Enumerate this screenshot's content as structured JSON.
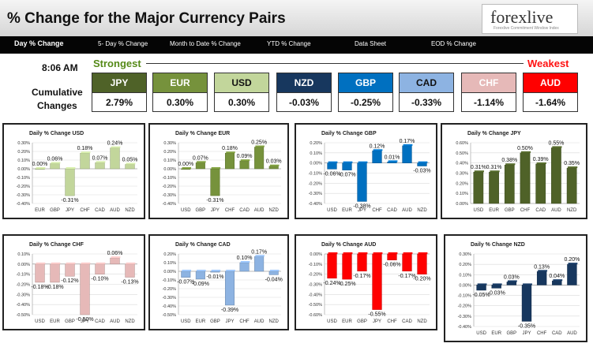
{
  "header": {
    "title": "% Change for the Major Currency Pairs",
    "logo": "forexlive",
    "logo_tagline": "Forexlive Commitment Window Index"
  },
  "tabs": [
    "Day % Change",
    "5- Day % Change",
    "Month to Date % Change",
    "YTD % Change",
    "Data Sheet",
    "EOD % Change"
  ],
  "summary": {
    "time": "8:06 AM",
    "cumulative_label_1": "Cumulative",
    "cumulative_label_2": "Changes",
    "strongest_label": "Strongest",
    "weakest_label": "Weakest",
    "pairs": [
      {
        "name": "JPY",
        "value": "2.79%",
        "bg": "#4f6228",
        "fg": "#ffffff"
      },
      {
        "name": "EUR",
        "value": "0.30%",
        "bg": "#76923c",
        "fg": "#ffffff"
      },
      {
        "name": "USD",
        "value": "0.30%",
        "bg": "#c2d69b",
        "fg": "#111111"
      },
      {
        "name": "NZD",
        "value": "-0.03%",
        "bg": "#17375e",
        "fg": "#ffffff"
      },
      {
        "name": "GBP",
        "value": "-0.25%",
        "bg": "#0070c0",
        "fg": "#ffffff"
      },
      {
        "name": "CAD",
        "value": "-0.33%",
        "bg": "#8db3e2",
        "fg": "#111111"
      },
      {
        "name": "CHF",
        "value": "-1.14%",
        "bg": "#e6b9b8",
        "fg": "#ffffff"
      },
      {
        "name": "AUD",
        "value": "-1.64%",
        "bg": "#ff0000",
        "fg": "#ffffff"
      }
    ]
  },
  "chart_data": [
    {
      "type": "bar",
      "title": "Daily % Change USD",
      "categories": [
        "EUR",
        "GBP",
        "JPY",
        "CHF",
        "CAD",
        "AUD",
        "NZD"
      ],
      "values": [
        0.0,
        0.06,
        -0.31,
        0.18,
        0.07,
        0.24,
        0.05
      ],
      "labels": [
        "0.00%",
        "0.06%",
        "-0.31%",
        "0.18%",
        "0.07%",
        "0.24%",
        "0.05%"
      ],
      "ticks": [
        "0.30%",
        "0.20%",
        "0.10%",
        "0.00%",
        "-0.10%",
        "-0.20%",
        "-0.30%",
        "-0.40%"
      ],
      "ylim": [
        -0.4,
        0.3
      ],
      "color": "#c2d69b"
    },
    {
      "type": "bar",
      "title": "Daily % Change EUR",
      "categories": [
        "USD",
        "GBP",
        "JPY",
        "CHF",
        "CAD",
        "AUD",
        "NZD"
      ],
      "values": [
        0.0,
        0.07,
        -0.31,
        0.18,
        0.09,
        0.25,
        0.03
      ],
      "labels": [
        "0.00%",
        "0.07%",
        "-0.31%",
        "0.18%",
        "0.09%",
        "0.25%",
        "0.03%"
      ],
      "ticks": [
        "0.30%",
        "0.20%",
        "0.10%",
        "0.00%",
        "-0.10%",
        "-0.20%",
        "-0.30%",
        "-0.40%"
      ],
      "ylim": [
        -0.4,
        0.3
      ],
      "color": "#76923c"
    },
    {
      "type": "bar",
      "title": "Daily % Change GBP",
      "categories": [
        "USD",
        "EUR",
        "JPY",
        "CHF",
        "CAD",
        "AUD",
        "NZD"
      ],
      "values": [
        -0.06,
        -0.07,
        -0.38,
        0.12,
        0.01,
        0.17,
        -0.03
      ],
      "labels": [
        "-0.06%",
        "-0.07%",
        "-0.38%",
        "0.12%",
        "0.01%",
        "0.17%",
        "-0.03%"
      ],
      "ticks": [
        "0.20%",
        "0.10%",
        "0.00%",
        "-0.10%",
        "-0.20%",
        "-0.30%",
        "-0.40%"
      ],
      "ylim": [
        -0.4,
        0.2
      ],
      "color": "#0070c0"
    },
    {
      "type": "bar",
      "title": "Daily % Change JPY",
      "categories": [
        "USD",
        "EUR",
        "GBP",
        "CHF",
        "CAD",
        "AUD",
        "NZD"
      ],
      "values": [
        0.31,
        0.31,
        0.38,
        0.5,
        0.39,
        0.55,
        0.35
      ],
      "labels": [
        "0.31%",
        "0.31%",
        "0.38%",
        "0.50%",
        "0.39%",
        "0.55%",
        "0.35%"
      ],
      "ticks": [
        "0.60%",
        "0.50%",
        "0.40%",
        "0.30%",
        "0.20%",
        "0.10%",
        "0.00%"
      ],
      "ylim": [
        0.0,
        0.6
      ],
      "color": "#4f6228"
    },
    {
      "type": "bar",
      "title": "Daily % Change CHF",
      "categories": [
        "USD",
        "EUR",
        "GBP",
        "JPY",
        "CAD",
        "AUD",
        "NZD"
      ],
      "values": [
        -0.18,
        -0.18,
        -0.12,
        -0.5,
        -0.1,
        0.06,
        -0.13
      ],
      "labels": [
        "-0.18%",
        "-0.18%",
        "-0.12%",
        "-0.50%",
        "-0.10%",
        "0.06%",
        "-0.13%"
      ],
      "ticks": [
        "0.10%",
        "0.00%",
        "-0.10%",
        "-0.20%",
        "-0.30%",
        "-0.40%",
        "-0.50%"
      ],
      "ylim": [
        -0.5,
        0.1
      ],
      "color": "#e6b9b8"
    },
    {
      "type": "bar",
      "title": "Daily % Change CAD",
      "categories": [
        "USD",
        "EUR",
        "GBP",
        "JPY",
        "CHF",
        "AUD",
        "NZD"
      ],
      "values": [
        -0.07,
        -0.09,
        -0.01,
        -0.39,
        0.1,
        0.17,
        -0.04
      ],
      "labels": [
        "-0.07%",
        "-0.09%",
        "-0.01%",
        "-0.39%",
        "0.10%",
        "0.17%",
        "-0.04%"
      ],
      "ticks": [
        "0.20%",
        "0.10%",
        "0.00%",
        "-0.10%",
        "-0.20%",
        "-0.30%",
        "-0.40%",
        "-0.50%"
      ],
      "ylim": [
        -0.5,
        0.2
      ],
      "color": "#8db3e2"
    },
    {
      "type": "bar",
      "title": "Daily % Change AUD",
      "categories": [
        "USD",
        "EUR",
        "GBP",
        "JPY",
        "CHF",
        "CAD",
        "NZD"
      ],
      "values": [
        -0.24,
        -0.25,
        -0.17,
        -0.55,
        -0.06,
        -0.17,
        -0.2
      ],
      "labels": [
        "-0.24%",
        "-0.25%",
        "-0.17%",
        "-0.55%",
        "-0.06%",
        "-0.17%",
        "-0.20%"
      ],
      "ticks": [
        "0.00%",
        "-0.10%",
        "-0.20%",
        "-0.30%",
        "-0.40%",
        "-0.50%",
        "-0.60%"
      ],
      "ylim": [
        -0.6,
        0.0
      ],
      "color": "#ff0000"
    },
    {
      "type": "bar",
      "title": "Daily % Change NZD",
      "categories": [
        "USD",
        "EUR",
        "GBP",
        "JPY",
        "CHF",
        "CAD",
        "AUD"
      ],
      "values": [
        -0.05,
        -0.03,
        0.03,
        -0.35,
        0.13,
        0.04,
        0.2
      ],
      "labels": [
        "-0.05%",
        "-0.03%",
        "0.03%",
        "-0.35%",
        "0.13%",
        "0.04%",
        "0.20%"
      ],
      "ticks": [
        "0.30%",
        "0.20%",
        "0.10%",
        "0.00%",
        "-0.10%",
        "-0.20%",
        "-0.30%",
        "-0.40%"
      ],
      "ylim": [
        -0.4,
        0.3
      ],
      "color": "#17375e"
    }
  ]
}
